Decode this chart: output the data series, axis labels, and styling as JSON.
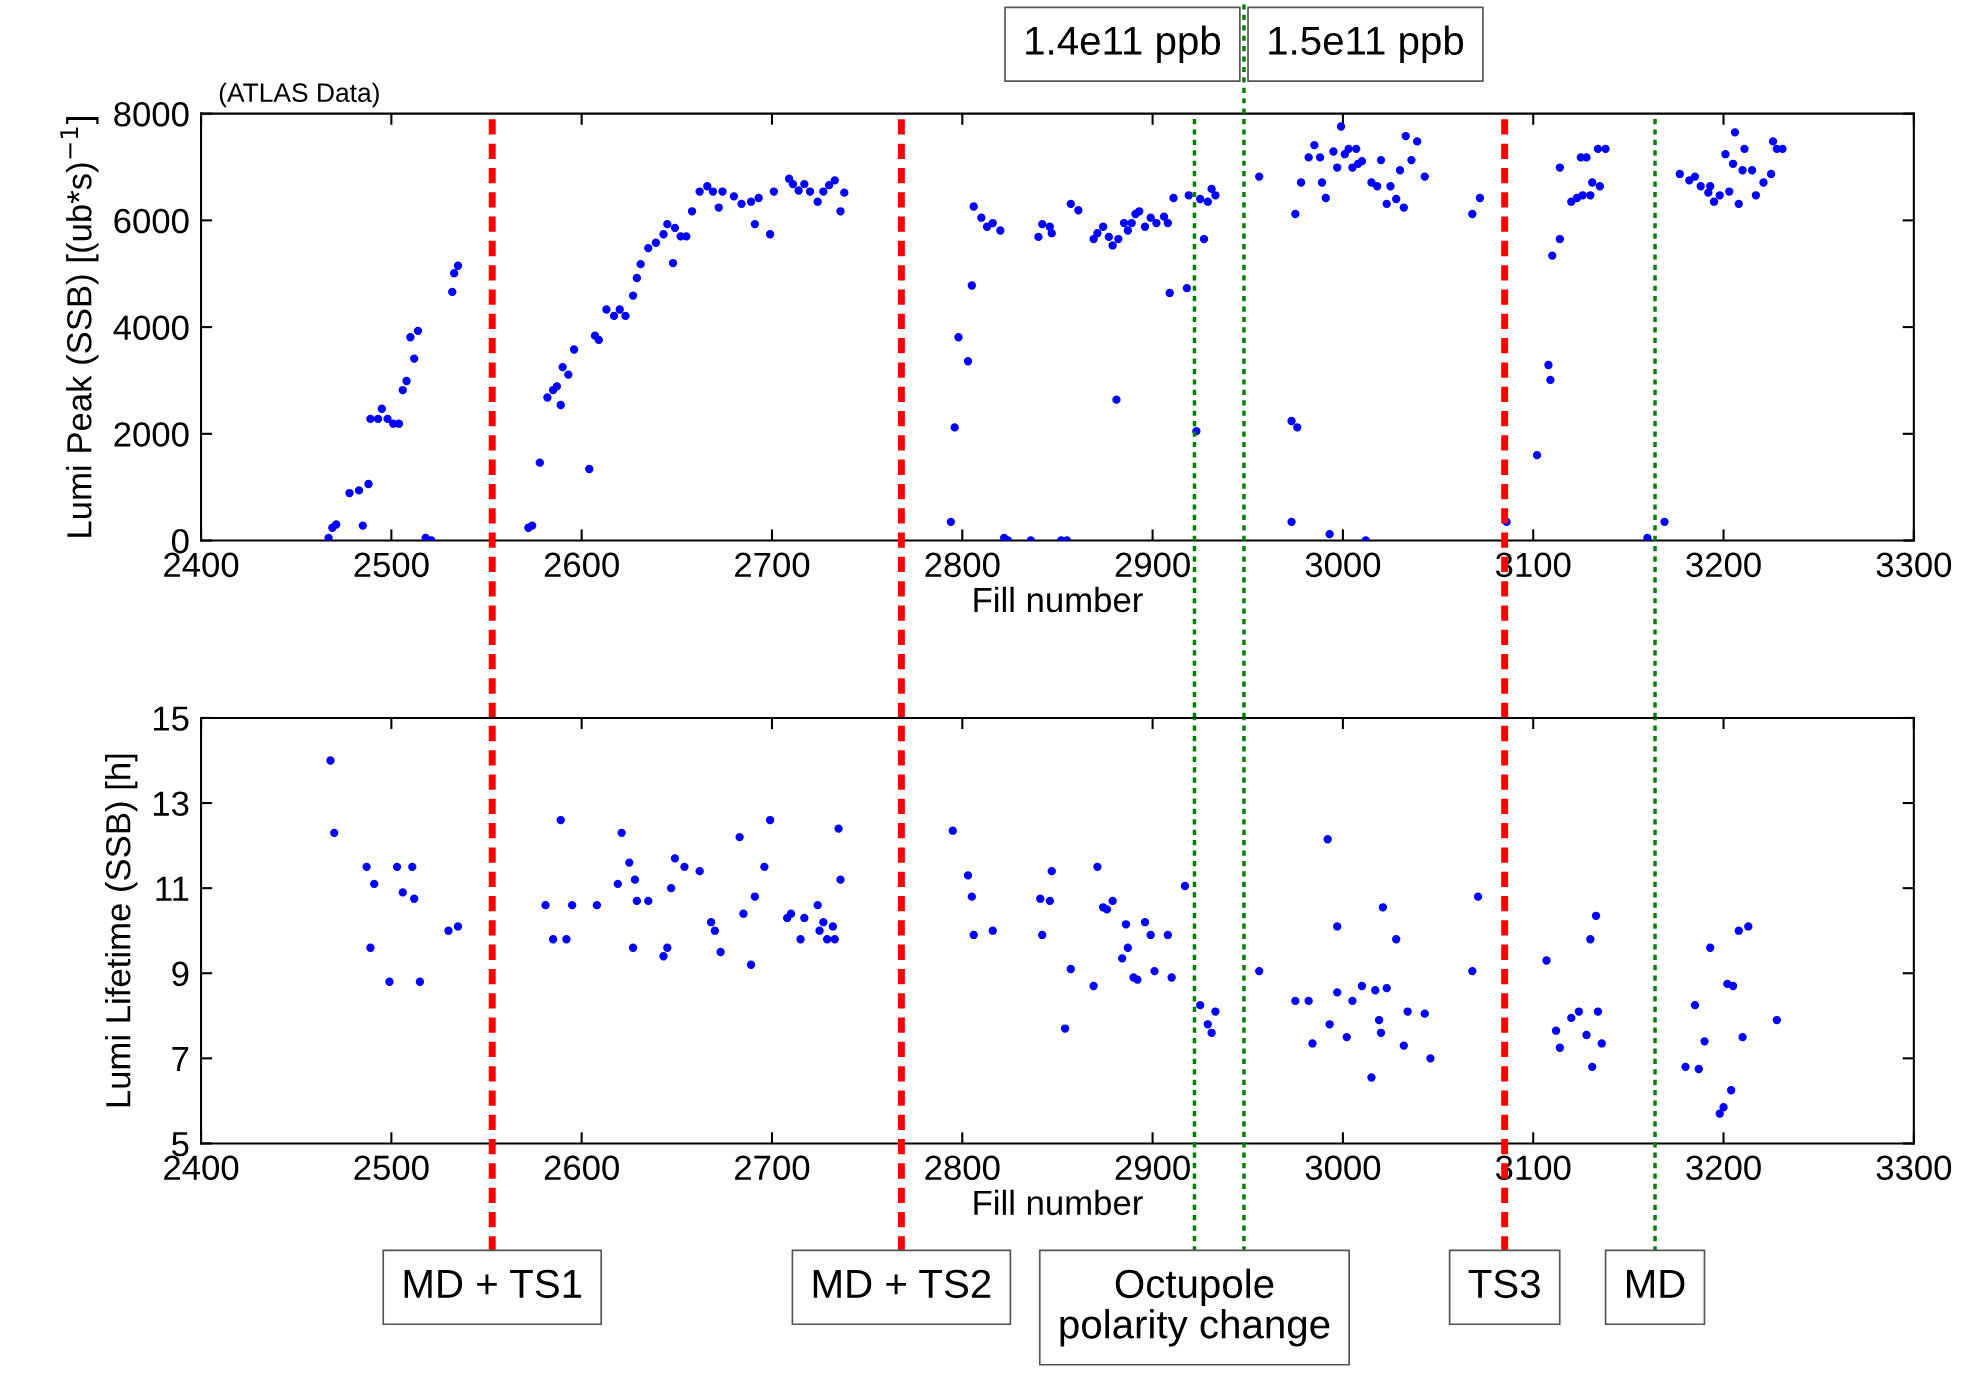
{
  "chart_data": [
    {
      "type": "scatter",
      "xlabel": "Fill number",
      "ylabel": "Lumi Peak (SSB) [(ub*s)$^{−1}$]",
      "color": "#0000ff",
      "marker": "circle",
      "grid": false,
      "xlim": [
        2400,
        3300
      ],
      "xticks": [
        2400,
        2500,
        2600,
        2700,
        2800,
        2900,
        3000,
        3100,
        3200,
        3300
      ],
      "ylim": [
        0,
        8000
      ],
      "yticks": [
        0,
        2000,
        4000,
        6000,
        8000
      ],
      "x": [
        2467,
        2469,
        2471,
        2478,
        2483,
        2485,
        2488,
        2489,
        2493,
        2495,
        2498,
        2501,
        2504,
        2506,
        2508,
        2510,
        2512,
        2514,
        2518,
        2521,
        2532,
        2533,
        2535,
        2572,
        2574,
        2578,
        2582,
        2585,
        2587,
        2589,
        2590,
        2593,
        2596,
        2604,
        2607,
        2609,
        2613,
        2617,
        2620,
        2623,
        2627,
        2629,
        2631,
        2635,
        2639,
        2643,
        2645,
        2648,
        2649,
        2652,
        2655,
        2658,
        2662,
        2666,
        2669,
        2672,
        2674,
        2680,
        2684,
        2689,
        2691,
        2693,
        2699,
        2701,
        2709,
        2711,
        2714,
        2717,
        2720,
        2724,
        2727,
        2730,
        2733,
        2736,
        2738,
        2794,
        2796,
        2798,
        2803,
        2805,
        2806,
        2810,
        2813,
        2816,
        2820,
        2822,
        2824,
        2836,
        2840,
        2842,
        2846,
        2847,
        2852,
        2855,
        2857,
        2861,
        2869,
        2871,
        2874,
        2877,
        2879,
        2881,
        2882,
        2885,
        2887,
        2889,
        2891,
        2893,
        2896,
        2899,
        2902,
        2906,
        2908,
        2909,
        2911,
        2918,
        2919,
        2923,
        2925,
        2927,
        2929,
        2931,
        2933,
        2956,
        2973,
        2973,
        2976,
        2975,
        2978,
        2982,
        2985,
        2988,
        2989,
        2991,
        2993,
        2995,
        2997,
        2999,
        3001,
        3003,
        3005,
        3007,
        3008,
        3010,
        3012,
        3015,
        3018,
        3020,
        3023,
        3025,
        3028,
        3030,
        3032,
        3033,
        3036,
        3039,
        3043,
        3068,
        3072,
        3086,
        3102,
        3108,
        3109,
        3110,
        3114,
        3114,
        3120,
        3123,
        3125,
        3126,
        3128,
        3130,
        3131,
        3134,
        3135,
        3138,
        3160,
        3169,
        3177,
        3182,
        3185,
        3188,
        3192,
        3193,
        3195,
        3198,
        3201,
        3203,
        3205,
        3206,
        3208,
        3210,
        3211,
        3215,
        3217,
        3221,
        3225,
        3226,
        3228,
        3231
      ],
      "values": [
        50,
        240,
        300,
        890,
        940,
        280,
        1060,
        2280,
        2280,
        2470,
        2280,
        2190,
        2190,
        2820,
        2990,
        3810,
        3410,
        3930,
        50,
        0,
        4660,
        5010,
        5150,
        240,
        280,
        1460,
        2680,
        2820,
        2890,
        2540,
        3250,
        3110,
        3580,
        1340,
        3840,
        3760,
        4330,
        4210,
        4330,
        4210,
        4590,
        4920,
        5180,
        5480,
        5580,
        5740,
        5930,
        5200,
        5860,
        5700,
        5700,
        6170,
        6540,
        6640,
        6540,
        6240,
        6540,
        6450,
        6310,
        6350,
        5930,
        6420,
        5740,
        6540,
        6780,
        6680,
        6560,
        6680,
        6540,
        6350,
        6540,
        6660,
        6750,
        6170,
        6520,
        350,
        2120,
        3810,
        3360,
        4780,
        6260,
        6050,
        5880,
        5950,
        5810,
        50,
        0,
        0,
        5690,
        5930,
        5880,
        5760,
        0,
        0,
        6310,
        6190,
        5650,
        5760,
        5880,
        5690,
        5530,
        2640,
        5650,
        5950,
        5810,
        5950,
        6120,
        6170,
        5880,
        6050,
        5950,
        6070,
        5950,
        4640,
        6420,
        4730,
        6470,
        2050,
        6400,
        5650,
        6350,
        6590,
        6470,
        6820,
        350,
        2240,
        2120,
        6120,
        6710,
        7180,
        7410,
        7180,
        6710,
        6420,
        120,
        7290,
        6990,
        7760,
        7240,
        7340,
        6990,
        7340,
        7060,
        7110,
        0,
        6710,
        6640,
        7130,
        6310,
        6640,
        6400,
        6940,
        6240,
        7580,
        7130,
        7480,
        6820,
        6120,
        6420,
        350,
        1600,
        3290,
        3010,
        5340,
        5650,
        6990,
        6350,
        6420,
        7180,
        6470,
        7180,
        6470,
        6710,
        7340,
        6640,
        7340,
        50,
        350,
        6870,
        6750,
        6820,
        6640,
        6520,
        6640,
        6350,
        6470,
        7240,
        6540,
        7060,
        7650,
        6310,
        6940,
        7340,
        6940,
        6470,
        6710,
        6870,
        7480,
        7340,
        7340
      ],
      "annotations": [
        "(ATLAS Data)",
        "1.4e11 ppb",
        "1.5e11 ppb"
      ],
      "ref_lines": [
        {
          "axis": "x",
          "value": 2553,
          "label": null,
          "color": "#ff0000",
          "line_style": "dashed"
        },
        {
          "axis": "x",
          "value": 2768,
          "label": null,
          "color": "#ff0000",
          "line_style": "dashed"
        },
        {
          "axis": "x",
          "value": 2922,
          "label": null,
          "color": "#008000",
          "line_style": "dotted"
        },
        {
          "axis": "x",
          "value": 2948,
          "label": null,
          "color": "#008000",
          "line_style": "dotted"
        },
        {
          "axis": "x",
          "value": 3085,
          "label": null,
          "color": "#ff0000",
          "line_style": "dashed"
        },
        {
          "axis": "x",
          "value": 3164,
          "label": null,
          "color": "#008000",
          "line_style": "dotted"
        }
      ]
    },
    {
      "type": "scatter",
      "xlabel": "Fill number",
      "ylabel": "Lumi Lifetime (SSB) [h]",
      "color": "#0000ff",
      "marker": "circle",
      "grid": false,
      "xlim": [
        2400,
        3300
      ],
      "xticks": [
        2400,
        2500,
        2600,
        2700,
        2800,
        2900,
        3000,
        3100,
        3200,
        3300
      ],
      "ylim": [
        5,
        15
      ],
      "yticks": [
        5,
        7,
        9,
        11,
        13,
        15
      ],
      "x": [
        2468,
        2470,
        2487,
        2489,
        2491,
        2499,
        2503,
        2506,
        2511,
        2512,
        2515,
        2530,
        2535,
        2581,
        2585,
        2589,
        2592,
        2595,
        2608,
        2619,
        2621,
        2625,
        2627,
        2628,
        2629,
        2635,
        2643,
        2645,
        2647,
        2649,
        2654,
        2662,
        2668,
        2670,
        2673,
        2683,
        2685,
        2689,
        2691,
        2696,
        2699,
        2708,
        2710,
        2715,
        2717,
        2724,
        2725,
        2727,
        2729,
        2732,
        2733,
        2735,
        2736,
        2795,
        2803,
        2805,
        2806,
        2816,
        2841,
        2842,
        2846,
        2847,
        2854,
        2857,
        2869,
        2871,
        2874,
        2876,
        2879,
        2884,
        2886,
        2887,
        2890,
        2892,
        2896,
        2899,
        2901,
        2908,
        2910,
        2917,
        2925,
        2929,
        2931,
        2933,
        2956,
        2975,
        2982,
        2984,
        2992,
        2993,
        2997,
        2997,
        3002,
        3005,
        3010,
        3015,
        3017,
        3019,
        3020,
        3021,
        3023,
        3028,
        3032,
        3034,
        3043,
        3046,
        3068,
        3071,
        3107,
        3112,
        3114,
        3120,
        3124,
        3128,
        3130,
        3131,
        3133,
        3134,
        3136,
        3180,
        3185,
        3187,
        3190,
        3193,
        3198,
        3200,
        3202,
        3204,
        3205,
        3208,
        3210,
        3213,
        3228
      ],
      "values": [
        14.0,
        12.3,
        11.5,
        9.6,
        11.1,
        8.8,
        11.5,
        10.9,
        11.5,
        10.75,
        8.8,
        10.0,
        10.1,
        10.6,
        9.8,
        12.6,
        9.8,
        10.6,
        10.6,
        11.1,
        12.3,
        11.6,
        9.6,
        11.2,
        10.7,
        10.7,
        9.4,
        9.6,
        11.0,
        11.7,
        11.5,
        11.4,
        10.2,
        10.0,
        9.5,
        12.2,
        10.4,
        9.2,
        10.8,
        11.5,
        12.6,
        10.3,
        10.4,
        9.8,
        10.3,
        10.6,
        10.0,
        10.2,
        9.8,
        10.1,
        9.8,
        12.4,
        11.2,
        12.35,
        11.3,
        10.8,
        9.9,
        10.0,
        10.75,
        9.9,
        10.7,
        11.4,
        7.7,
        9.1,
        8.7,
        11.5,
        10.55,
        10.5,
        10.7,
        9.35,
        10.15,
        9.6,
        8.9,
        8.85,
        10.2,
        9.9,
        9.05,
        9.9,
        8.9,
        11.05,
        8.25,
        7.8,
        7.6,
        8.1,
        9.05,
        8.35,
        8.35,
        7.35,
        12.15,
        7.8,
        10.1,
        8.55,
        7.5,
        8.35,
        8.7,
        6.55,
        8.6,
        7.9,
        7.6,
        10.55,
        8.65,
        9.8,
        7.3,
        8.1,
        8.05,
        7.0,
        9.05,
        10.8,
        9.3,
        7.65,
        7.25,
        7.95,
        8.1,
        7.55,
        9.8,
        6.8,
        10.35,
        8.1,
        7.35,
        6.8,
        8.25,
        6.75,
        7.4,
        9.6,
        5.7,
        5.85,
        8.75,
        6.25,
        8.7,
        10.0,
        7.5,
        10.1,
        7.9
      ],
      "ref_lines": [
        {
          "axis": "x",
          "value": 2553,
          "label": "MD + TS1",
          "color": "#ff0000",
          "line_style": "dashed"
        },
        {
          "axis": "x",
          "value": 2768,
          "label": "MD + TS2",
          "color": "#ff0000",
          "line_style": "dashed"
        },
        {
          "axis": "x",
          "value": 2922,
          "label": "Octupole\npolarity change",
          "color": "#008000",
          "line_style": "dotted"
        },
        {
          "axis": "x",
          "value": 2948,
          "label": null,
          "color": "#008000",
          "line_style": "dotted"
        },
        {
          "axis": "x",
          "value": 3085,
          "label": "TS3",
          "color": "#ff0000",
          "line_style": "dashed"
        },
        {
          "axis": "x",
          "value": 3164,
          "label": "MD",
          "color": "#008000",
          "line_style": "dotted"
        }
      ]
    }
  ]
}
